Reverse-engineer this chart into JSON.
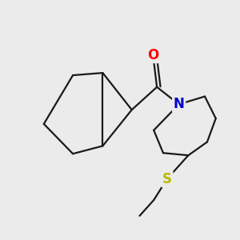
{
  "background_color": "#ebebeb",
  "bond_color": "#1a1a1a",
  "O_color": "#ff0000",
  "N_color": "#0000cc",
  "S_color": "#b8b800",
  "line_width": 1.6,
  "figsize": [
    3.0,
    3.0
  ],
  "dpi": 100,
  "xlim": [
    0,
    300
  ],
  "ylim": [
    0,
    300
  ]
}
